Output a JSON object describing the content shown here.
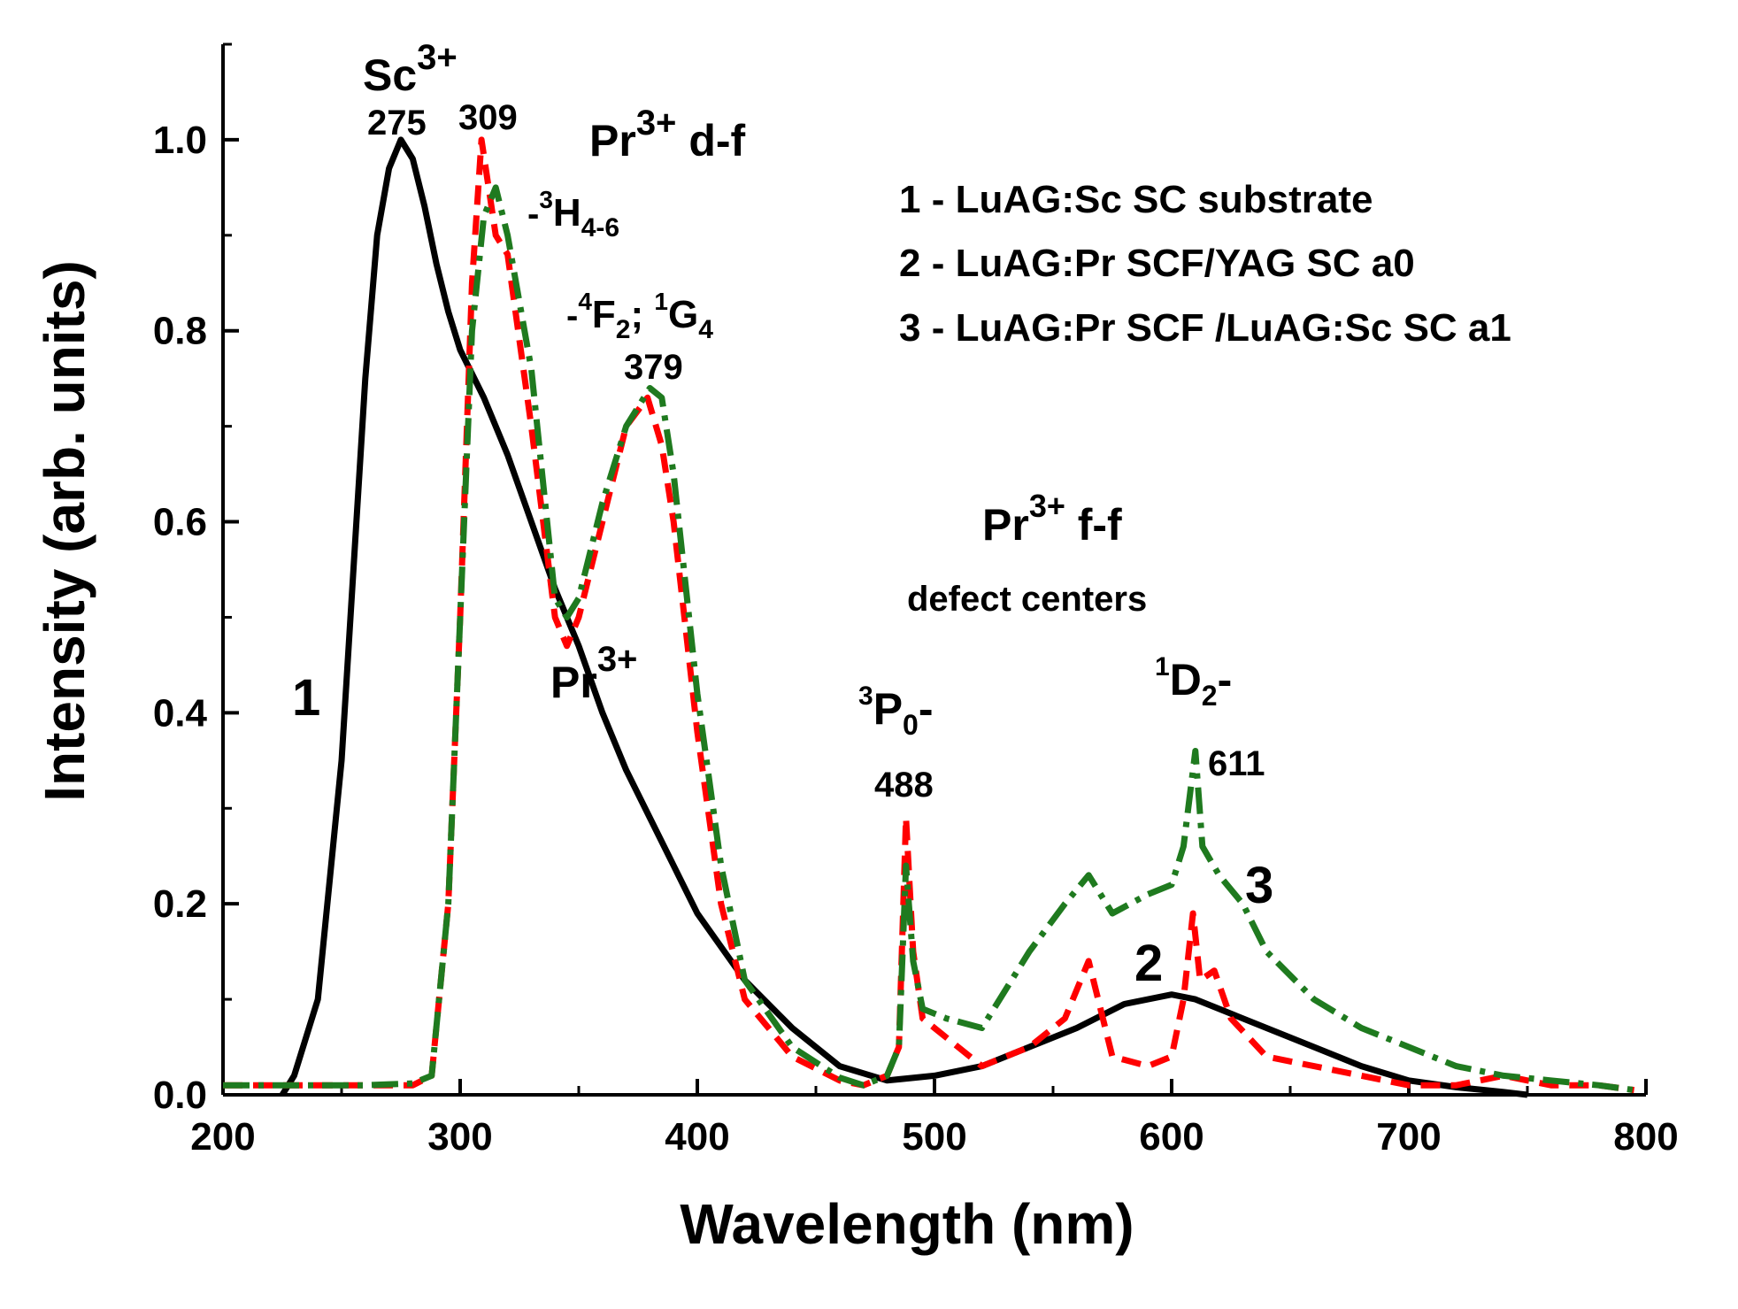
{
  "chart_data": {
    "type": "line",
    "title": "",
    "xlabel": "Wavelength (nm)",
    "ylabel": "Intensity (arb. units)",
    "xlim": [
      200,
      800
    ],
    "ylim": [
      0.0,
      1.1
    ],
    "x_ticks": [
      200,
      300,
      400,
      500,
      600,
      700,
      800
    ],
    "x_tick_labels": [
      "200",
      "300",
      "400",
      "500",
      "600",
      "700",
      "800"
    ],
    "y_ticks": [
      0.0,
      0.2,
      0.4,
      0.6,
      0.8,
      1.0
    ],
    "y_tick_labels": [
      "0.0",
      "0.2",
      "0.4",
      "0.6",
      "0.8",
      "1.0"
    ],
    "grid": false,
    "legend": {
      "placement": "top-right",
      "entries": [
        "1 - LuAG:Sc SC substrate",
        "2 - LuAG:Pr SCF/YAG SC a0",
        "3 -  LuAG:Pr SCF /LuAG:Sc SC a1"
      ]
    },
    "series": [
      {
        "name": "1",
        "color": "#000000",
        "style": "solid",
        "x": [
          225,
          230,
          240,
          250,
          260,
          265,
          270,
          275,
          280,
          285,
          290,
          295,
          300,
          310,
          320,
          330,
          340,
          350,
          360,
          370,
          380,
          390,
          400,
          420,
          440,
          460,
          480,
          500,
          520,
          540,
          560,
          580,
          600,
          610,
          620,
          640,
          660,
          680,
          700,
          720,
          740,
          750
        ],
        "y": [
          0.0,
          0.02,
          0.1,
          0.35,
          0.75,
          0.9,
          0.97,
          1.0,
          0.98,
          0.93,
          0.87,
          0.82,
          0.78,
          0.73,
          0.67,
          0.6,
          0.53,
          0.47,
          0.4,
          0.34,
          0.29,
          0.24,
          0.19,
          0.12,
          0.07,
          0.03,
          0.015,
          0.02,
          0.03,
          0.05,
          0.07,
          0.095,
          0.105,
          0.1,
          0.09,
          0.07,
          0.05,
          0.03,
          0.015,
          0.008,
          0.003,
          0.0
        ]
      },
      {
        "name": "2",
        "color": "#ff0000",
        "style": "dashed",
        "x": [
          200,
          220,
          240,
          260,
          280,
          288,
          295,
          300,
          305,
          309,
          315,
          320,
          330,
          340,
          345,
          350,
          360,
          370,
          379,
          385,
          390,
          400,
          410,
          420,
          440,
          460,
          470,
          480,
          485,
          488,
          491,
          495,
          505,
          520,
          540,
          555,
          565,
          575,
          590,
          600,
          605,
          609,
          612,
          618,
          625,
          640,
          660,
          680,
          700,
          720,
          740,
          760,
          780,
          795
        ],
        "y": [
          0.01,
          0.01,
          0.01,
          0.01,
          0.01,
          0.02,
          0.2,
          0.5,
          0.85,
          1.0,
          0.9,
          0.88,
          0.7,
          0.5,
          0.47,
          0.5,
          0.6,
          0.7,
          0.73,
          0.68,
          0.6,
          0.38,
          0.2,
          0.1,
          0.04,
          0.015,
          0.01,
          0.02,
          0.05,
          0.29,
          0.15,
          0.08,
          0.06,
          0.03,
          0.05,
          0.08,
          0.14,
          0.04,
          0.03,
          0.04,
          0.1,
          0.19,
          0.12,
          0.13,
          0.08,
          0.04,
          0.03,
          0.02,
          0.01,
          0.01,
          0.02,
          0.01,
          0.01,
          0.005
        ]
      },
      {
        "name": "3",
        "color": "#1f7a1f",
        "style": "dash-dot",
        "x": [
          200,
          220,
          240,
          260,
          280,
          288,
          295,
          300,
          305,
          310,
          315,
          320,
          330,
          340,
          345,
          350,
          360,
          370,
          380,
          385,
          390,
          400,
          410,
          420,
          440,
          460,
          470,
          480,
          485,
          488,
          491,
          495,
          505,
          520,
          540,
          555,
          565,
          575,
          590,
          600,
          605,
          610,
          613,
          620,
          630,
          640,
          660,
          680,
          700,
          720,
          740,
          760,
          780,
          795
        ],
        "y": [
          0.01,
          0.01,
          0.01,
          0.01,
          0.012,
          0.02,
          0.2,
          0.5,
          0.8,
          0.92,
          0.95,
          0.9,
          0.76,
          0.52,
          0.5,
          0.52,
          0.62,
          0.7,
          0.74,
          0.73,
          0.65,
          0.42,
          0.24,
          0.12,
          0.05,
          0.018,
          0.01,
          0.02,
          0.05,
          0.24,
          0.14,
          0.09,
          0.08,
          0.07,
          0.15,
          0.2,
          0.23,
          0.19,
          0.21,
          0.22,
          0.26,
          0.36,
          0.26,
          0.23,
          0.2,
          0.15,
          0.1,
          0.07,
          0.05,
          0.03,
          0.02,
          0.015,
          0.01,
          0.005
        ]
      }
    ],
    "annotations": {
      "sc3": "Sc",
      "sc3_sup": "3+",
      "peak275": "275",
      "peak309": "309",
      "prdf": "Pr",
      "prdf_sup": "3+",
      "prdf_tail": " d-f",
      "h46_pre": "-",
      "h46_sup": "3",
      "h46_main": "H",
      "h46_sub": "4-6",
      "f2_pre": "-",
      "f2_sup": "4",
      "f2_main": "F",
      "f2_sub": "2",
      "f2_mid": "; ",
      "g4_sup": "1",
      "g4_main": "G",
      "g4_sub": "4",
      "peak379": "379",
      "pr_mid": "Pr",
      "pr_mid_sup": "3+",
      "curve1": "1",
      "curve2": "2",
      "curve3": "3",
      "prff": "Pr",
      "prff_sup": "3+",
      "prff_tail": " f-f",
      "defect": "defect centers",
      "p0_sup": "3",
      "p0_main": "P",
      "p0_sub": "0",
      "p0_tail": "-",
      "peak488": "488",
      "d2_sup": "1",
      "d2_main": "D",
      "d2_sub": "2",
      "d2_tail": "-",
      "peak611": "611"
    }
  }
}
